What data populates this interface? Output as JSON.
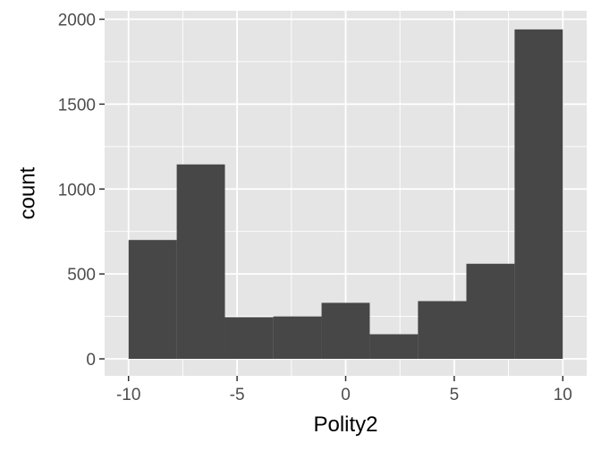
{
  "chart_data": {
    "type": "bar",
    "subtype": "histogram",
    "xlabel": "Polity2",
    "ylabel": "count",
    "xlim": [
      -11.1,
      11.1
    ],
    "ylim": [
      -100,
      2050
    ],
    "x_ticks": [
      -10,
      -5,
      0,
      5,
      10
    ],
    "x_tick_labels": [
      "-10",
      "-5",
      "0",
      "5",
      "10"
    ],
    "y_ticks": [
      0,
      500,
      1000,
      1500,
      2000
    ],
    "y_tick_labels": [
      "0",
      "500",
      "1000",
      "1500",
      "2000"
    ],
    "bins": [
      {
        "x0": -10.0,
        "x1": -7.78,
        "count": 700
      },
      {
        "x0": -7.78,
        "x1": -5.56,
        "count": 1145
      },
      {
        "x0": -5.56,
        "x1": -3.33,
        "count": 245
      },
      {
        "x0": -3.33,
        "x1": -1.11,
        "count": 250
      },
      {
        "x0": -1.11,
        "x1": 1.11,
        "count": 330
      },
      {
        "x0": 1.11,
        "x1": 3.33,
        "count": 145
      },
      {
        "x0": 3.33,
        "x1": 5.56,
        "count": 340
      },
      {
        "x0": 5.56,
        "x1": 7.78,
        "count": 560
      },
      {
        "x0": 7.78,
        "x1": 10.0,
        "count": 1940
      }
    ],
    "grid": true,
    "colors": {
      "panel": "#e5e5e5",
      "bar": "#474747",
      "grid": "#ffffff"
    }
  }
}
